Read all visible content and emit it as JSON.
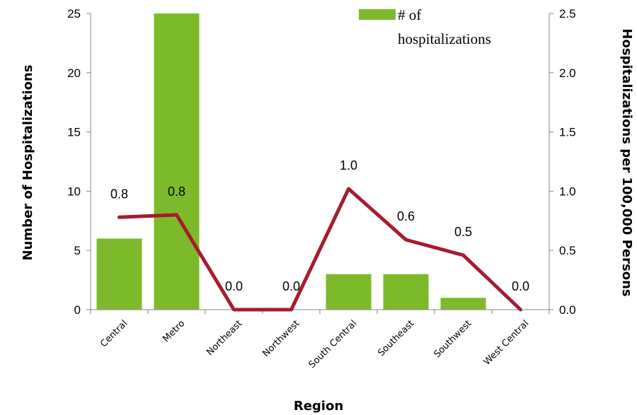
{
  "chart_data": {
    "type": "bar+line",
    "categories": [
      "Central",
      "Metro",
      "Northeast",
      "Northwest",
      "South Central",
      "Southeast",
      "Southwest",
      "West Central"
    ],
    "series": [
      {
        "name": "# of hospitalizations",
        "type": "bar",
        "axis": "left",
        "values": [
          6,
          25,
          0,
          0,
          3,
          3,
          1,
          0
        ],
        "color": "#7dba2b"
      },
      {
        "type": "line",
        "axis": "right",
        "values": [
          0.78,
          0.8,
          0.0,
          0.0,
          1.02,
          0.59,
          0.46,
          0.0
        ],
        "labels": [
          "0.8",
          "0.8",
          "0.0",
          "0.0",
          "1.0",
          "0.6",
          "0.5",
          "0.0"
        ],
        "color": "#a51c30"
      }
    ],
    "xlabel": "Region",
    "ylabel": "Number of Hospitalizations",
    "y2label": "Hospitalizations per 100,000 Persons",
    "ylim": [
      0,
      25
    ],
    "y2lim": [
      0,
      2.5
    ],
    "yticks": [
      "0",
      "5",
      "10",
      "15",
      "20",
      "25"
    ],
    "y2ticks": [
      "0.0",
      "0.5",
      "1.0",
      "1.5",
      "2.0",
      "2.5"
    ],
    "legend": {
      "position": "top-right",
      "line1": "# of",
      "line2": "hospitalizations"
    },
    "grid": false
  }
}
